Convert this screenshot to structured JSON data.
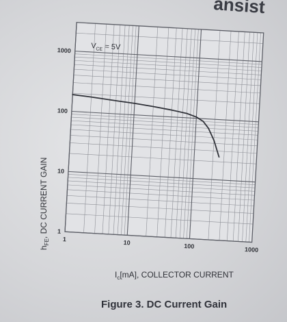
{
  "header_fragment": "ansist",
  "caption": "Figure 3. DC Current Gain",
  "chart_data": {
    "type": "line",
    "annotation": "V_CE = 5V",
    "xlabel": "I_c[mA], COLLECTOR CURRENT",
    "ylabel": "h_FE, DC CURRENT GAIN",
    "x_scale": "log",
    "y_scale": "log",
    "xlim": [
      1,
      1000
    ],
    "ylim": [
      1,
      3000
    ],
    "x_ticks": [
      {
        "value": 1,
        "label": "1"
      },
      {
        "value": 10,
        "label": "10"
      },
      {
        "value": 100,
        "label": "100"
      },
      {
        "value": 1000,
        "label": "1000"
      }
    ],
    "y_ticks": [
      {
        "value": 1,
        "label": "1"
      },
      {
        "value": 10,
        "label": "10"
      },
      {
        "value": 100,
        "label": "100"
      },
      {
        "value": 1000,
        "label": "1000"
      }
    ],
    "grid": true,
    "series": [
      {
        "x": [
          1,
          2,
          5,
          10,
          20,
          40,
          70,
          100,
          130,
          160,
          200,
          250
        ],
        "y": [
          190,
          180,
          165,
          155,
          143,
          130,
          118,
          105,
          90,
          70,
          45,
          24
        ]
      }
    ]
  },
  "colors": {
    "background": "#d6d7d9",
    "plot_area": "#e2e3e6",
    "grid_major": "#5c5e66",
    "grid_minor": "#8d8f96",
    "curve": "#2f3138",
    "text": "#2e3036"
  }
}
